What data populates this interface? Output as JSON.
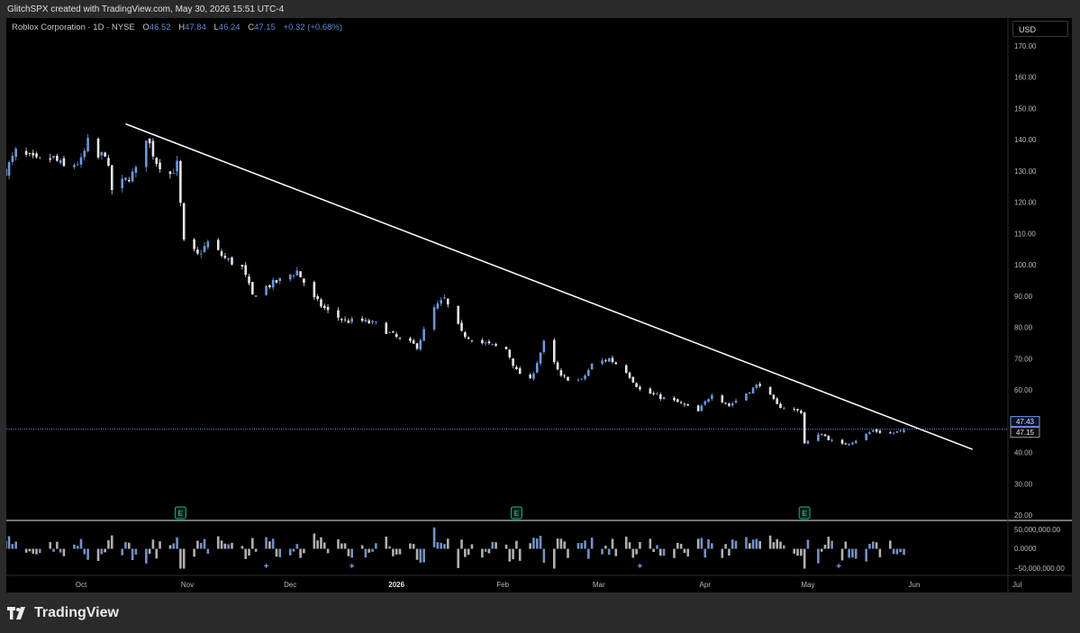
{
  "attribution": "GlitchSPX created with TradingView.com, May 30, 2026 15:51 UTC-4",
  "legend": {
    "symbol": "Roblox Corporation · 1D · NYSE",
    "o_label": "O",
    "o": "46.52",
    "h_label": "H",
    "h": "47.84",
    "l_label": "L",
    "l": "46.24",
    "c_label": "C",
    "c": "47.15",
    "change": "+0.32 (+0.68%)"
  },
  "currency": "USD",
  "brand": "TradingView",
  "colors": {
    "up": "#6e96dc",
    "down": "#e6e6e6",
    "trendline": "#ffffff",
    "hline": "#6ea0ff",
    "earnings": "#2aa58a",
    "background": "#000000"
  },
  "chart_data": {
    "type": "candlestick",
    "symbol": "Roblox Corporation",
    "interval": "1D",
    "exchange": "NYSE",
    "price_axis": {
      "min": 20,
      "max": 170,
      "ticks": [
        "170.00",
        "160.00",
        "150.00",
        "140.00",
        "130.00",
        "120.00",
        "110.00",
        "100.00",
        "90.00",
        "80.00",
        "70.00",
        "60.00",
        "50.00",
        "40.00",
        "30.00",
        "20.00"
      ]
    },
    "time_axis": {
      "labels": [
        "Oct",
        "Nov",
        "Dec",
        "2026",
        "Feb",
        "Mar",
        "Apr",
        "May",
        "Jun",
        "Jul"
      ],
      "label_dates": [
        "2025-10-01",
        "2025-11-01",
        "2025-12-01",
        "2026-01-01",
        "2026-02-01",
        "2026-03-01",
        "2026-04-01",
        "2026-05-01",
        "2026-06-01",
        "2026-07-01"
      ]
    },
    "price_labels": [
      "47.43",
      "47.15"
    ],
    "horizontal_line": {
      "price": 47.43
    },
    "trendline": {
      "start": {
        "date": "2025-10-14",
        "price": 145
      },
      "end": {
        "date": "2026-06-18",
        "price": 41
      }
    },
    "earnings_dates": [
      "2025-10-30",
      "2026-02-05",
      "2026-04-30"
    ],
    "dividend_markers": [
      "2025-11-24",
      "2025-12-19",
      "2026-03-13",
      "2026-05-10"
    ],
    "anchors": [
      [
        "2025-09-09",
        130
      ],
      [
        "2025-09-12",
        136
      ],
      [
        "2025-09-18",
        133
      ],
      [
        "2025-09-23",
        134
      ],
      [
        "2025-09-26",
        131
      ],
      [
        "2025-10-01",
        133
      ],
      [
        "2025-10-03",
        139
      ],
      [
        "2025-10-06",
        134
      ],
      [
        "2025-10-08",
        136
      ],
      [
        "2025-10-10",
        124
      ],
      [
        "2025-10-14",
        127
      ],
      [
        "2025-10-17",
        130
      ],
      [
        "2025-10-20",
        141
      ],
      [
        "2025-10-23",
        133
      ],
      [
        "2025-10-27",
        129
      ],
      [
        "2025-10-29",
        132
      ],
      [
        "2025-10-30",
        119
      ],
      [
        "2025-10-31",
        107
      ],
      [
        "2025-11-04",
        103
      ],
      [
        "2025-11-07",
        107
      ],
      [
        "2025-11-12",
        102
      ],
      [
        "2025-11-17",
        99
      ],
      [
        "2025-11-20",
        90
      ],
      [
        "2025-11-24",
        93
      ],
      [
        "2025-11-28",
        95
      ],
      [
        "2025-12-03",
        98
      ],
      [
        "2025-12-08",
        89
      ],
      [
        "2025-12-12",
        85
      ],
      [
        "2025-12-17",
        82
      ],
      [
        "2025-12-22",
        82
      ],
      [
        "2025-12-26",
        81
      ],
      [
        "2026-01-02",
        76
      ],
      [
        "2026-01-07",
        74
      ],
      [
        "2026-01-12",
        86
      ],
      [
        "2026-01-15",
        89
      ],
      [
        "2026-01-20",
        78
      ],
      [
        "2026-01-26",
        75
      ],
      [
        "2026-02-02",
        73
      ],
      [
        "2026-02-05",
        66
      ],
      [
        "2026-02-09",
        63
      ],
      [
        "2026-02-13",
        75
      ],
      [
        "2026-02-18",
        64
      ],
      [
        "2026-02-24",
        63
      ],
      [
        "2026-02-27",
        68
      ],
      [
        "2026-03-04",
        70
      ],
      [
        "2026-03-09",
        66
      ],
      [
        "2026-03-13",
        60
      ],
      [
        "2026-03-18",
        58
      ],
      [
        "2026-03-24",
        56
      ],
      [
        "2026-03-30",
        53
      ],
      [
        "2026-04-03",
        59
      ],
      [
        "2026-04-08",
        55
      ],
      [
        "2026-04-13",
        59
      ],
      [
        "2026-04-17",
        62
      ],
      [
        "2026-04-22",
        55
      ],
      [
        "2026-04-29",
        53
      ],
      [
        "2026-04-30",
        43
      ],
      [
        "2026-05-05",
        46
      ],
      [
        "2026-05-10",
        42
      ],
      [
        "2026-05-15",
        44
      ],
      [
        "2026-05-20",
        47
      ],
      [
        "2026-05-25",
        46
      ],
      [
        "2026-05-29",
        47.15
      ]
    ],
    "volume_axis": {
      "ticks": [
        "50,000,000.00",
        "0.0000",
        "−50,000,000.00"
      ]
    }
  }
}
